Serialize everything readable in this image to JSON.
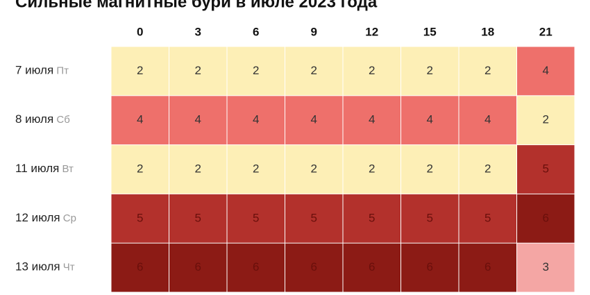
{
  "chart_data": {
    "type": "heatmap",
    "title": "Сильные магнитные бури в июле 2023 года",
    "x": [
      0,
      3,
      6,
      9,
      12,
      15,
      18,
      21
    ],
    "rows": [
      {
        "date": "7 июля",
        "weekday": "Пт"
      },
      {
        "date": "8 июля",
        "weekday": "Сб"
      },
      {
        "date": "11 июля",
        "weekday": "Вт"
      },
      {
        "date": "12 июля",
        "weekday": "Ср"
      },
      {
        "date": "13 июля",
        "weekday": "Чт"
      }
    ],
    "values": [
      [
        2,
        2,
        2,
        2,
        2,
        2,
        2,
        4
      ],
      [
        4,
        4,
        4,
        4,
        4,
        4,
        4,
        2
      ],
      [
        2,
        2,
        2,
        2,
        2,
        2,
        2,
        5
      ],
      [
        5,
        5,
        5,
        5,
        5,
        5,
        5,
        6
      ],
      [
        6,
        6,
        6,
        6,
        6,
        6,
        6,
        3
      ]
    ],
    "colors": {
      "2": "#fdefb6",
      "3": "#f4a6a4",
      "4": "#ee706b",
      "5": "#b3312c",
      "6": "#8c1b15"
    }
  }
}
